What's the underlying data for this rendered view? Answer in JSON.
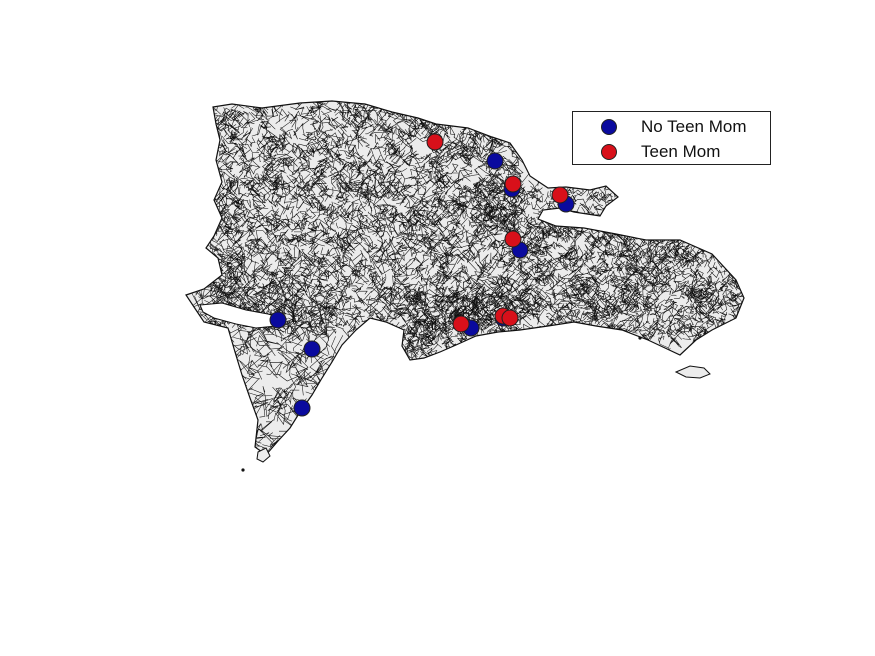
{
  "legend": {
    "items": [
      {
        "label": "No Teen Mom",
        "color": "#0a0a9e"
      },
      {
        "label": "Teen Mom",
        "color": "#d8101a"
      }
    ]
  },
  "colors": {
    "land_fill": "#ececec",
    "boundary_stroke": "#111111",
    "no_teen_mom": "#0a0a9e",
    "teen_mom": "#d8101a"
  }
}
